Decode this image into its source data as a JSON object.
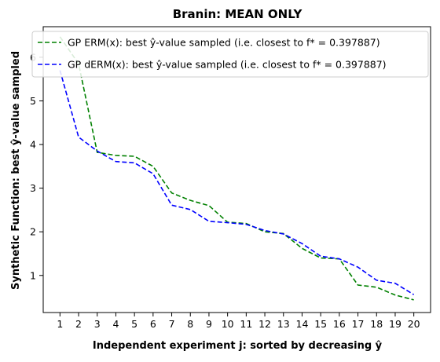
{
  "chart_data": {
    "type": "line",
    "title": "Branin: MEAN ONLY",
    "xlabel": "Independent experiment j: sorted by decreasing ŷ",
    "ylabel": "Synthetic Function: best ŷ-value sampled",
    "x": [
      1,
      2,
      3,
      4,
      5,
      6,
      7,
      8,
      9,
      10,
      11,
      12,
      13,
      14,
      15,
      16,
      17,
      18,
      19,
      20
    ],
    "xticks": [
      "1",
      "2",
      "3",
      "4",
      "5",
      "6",
      "7",
      "8",
      "9",
      "10",
      "11",
      "12",
      "13",
      "14",
      "15",
      "16",
      "17",
      "18",
      "19",
      "20"
    ],
    "yticks": [
      "1",
      "2",
      "3",
      "4",
      "5",
      "6"
    ],
    "xlim": [
      0.1,
      20.9
    ],
    "ylim": [
      0.15,
      6.7
    ],
    "grid": false,
    "legend_position": "top-left",
    "series": [
      {
        "name": "GP ERM(x):   best ŷ-value sampled (i.e. closest to f* = 0.397887)",
        "color": "#008000",
        "dash": "dashed",
        "values": [
          6.47,
          5.85,
          3.82,
          3.75,
          3.73,
          3.5,
          2.89,
          2.72,
          2.6,
          2.22,
          2.19,
          2.0,
          1.96,
          1.62,
          1.4,
          1.38,
          0.78,
          0.73,
          0.55,
          0.44
        ]
      },
      {
        "name": "GP dERM(x): best ŷ-value sampled (i.e. closest to f* = 0.397887)",
        "color": "#0000ff",
        "dash": "dashed",
        "values": [
          5.7,
          4.17,
          3.85,
          3.61,
          3.58,
          3.33,
          2.61,
          2.51,
          2.24,
          2.21,
          2.17,
          2.03,
          1.95,
          1.73,
          1.44,
          1.38,
          1.19,
          0.89,
          0.82,
          0.56
        ]
      }
    ]
  }
}
